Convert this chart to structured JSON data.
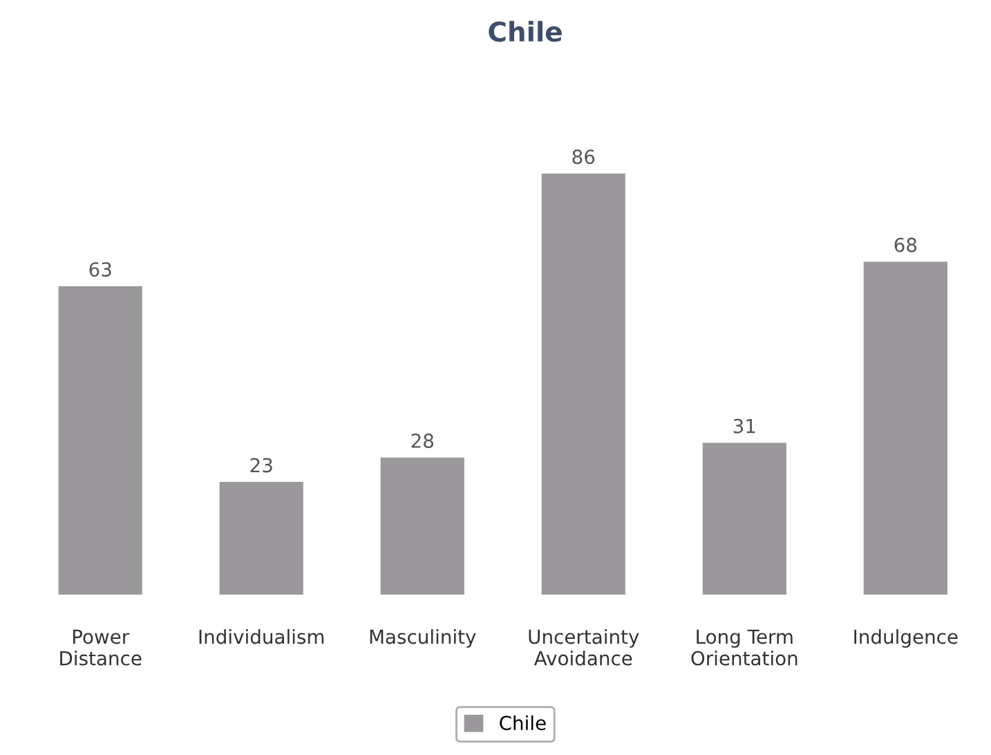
{
  "chart_data": {
    "type": "bar",
    "title": "Chile",
    "categories": [
      "Power\nDistance",
      "Individualism",
      "Masculinity",
      "Uncertainty\nAvoidance",
      "Long Term\nOrientation",
      "Indulgence"
    ],
    "series": [
      {
        "name": "Chile",
        "color": "#9b989b",
        "values": [
          63,
          23,
          28,
          86,
          31,
          68
        ]
      }
    ],
    "data_labels": true,
    "grid": false,
    "legend": "bottom"
  }
}
